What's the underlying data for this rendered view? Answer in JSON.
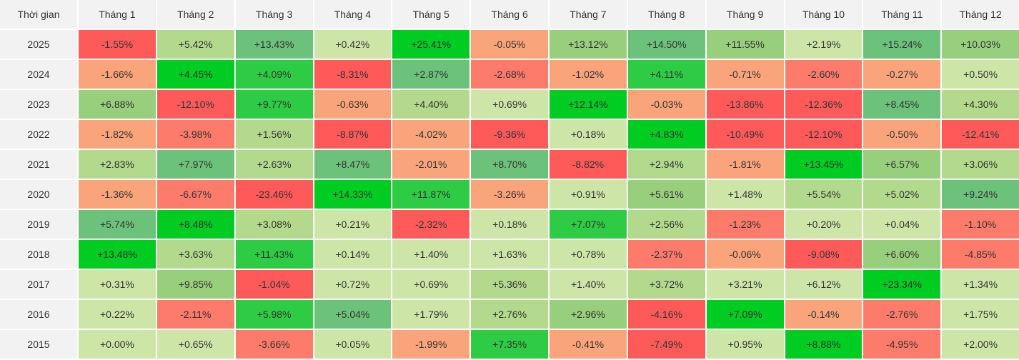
{
  "table": {
    "header": [
      "Thời gian",
      "Tháng 1",
      "Tháng 2",
      "Tháng 3",
      "Tháng 4",
      "Tháng 5",
      "Tháng 6",
      "Tháng 7",
      "Tháng 8",
      "Tháng 9",
      "Tháng 10",
      "Tháng 11",
      "Tháng 12"
    ],
    "rows": [
      [
        "2025",
        "-1.55%",
        "+5.42%",
        "+13.43%",
        "+0.42%",
        "+25.41%",
        "-0.05%",
        "+13.12%",
        "+14.50%",
        "+11.55%",
        "+2.19%",
        "+15.24%",
        "+10.03%"
      ],
      [
        "2024",
        "-1.66%",
        "+4.45%",
        "+4.09%",
        "-8.31%",
        "+2.87%",
        "-2.68%",
        "-1.02%",
        "+4.11%",
        "-0.71%",
        "-2.60%",
        "-0.27%",
        "+0.50%"
      ],
      [
        "2023",
        "+6.88%",
        "-12.10%",
        "+9.77%",
        "-0.63%",
        "+4.40%",
        "+0.69%",
        "+12.14%",
        "-0.03%",
        "-13.86%",
        "-12.36%",
        "+8.45%",
        "+4.30%"
      ],
      [
        "2022",
        "-1.82%",
        "-3.98%",
        "+1.56%",
        "-8.87%",
        "-4.02%",
        "-9.36%",
        "+0.18%",
        "+4.83%",
        "-10.49%",
        "-12.10%",
        "-0.50%",
        "-12.41%"
      ],
      [
        "2021",
        "+2.83%",
        "+7.97%",
        "+2.63%",
        "+8.47%",
        "-2.01%",
        "+8.70%",
        "-8.82%",
        "+2.94%",
        "-1.81%",
        "+13.45%",
        "+6.57%",
        "+3.06%"
      ],
      [
        "2020",
        "-1.36%",
        "-6.67%",
        "-23.46%",
        "+14.33%",
        "+11.87%",
        "-3.26%",
        "+0.91%",
        "+5.61%",
        "+1.48%",
        "+5.54%",
        "+5.02%",
        "+9.24%"
      ],
      [
        "2019",
        "+5.74%",
        "+8.48%",
        "+3.08%",
        "+0.21%",
        "-2.32%",
        "+0.18%",
        "+7.07%",
        "+2.56%",
        "-1.23%",
        "+0.20%",
        "+0.04%",
        "-1.10%"
      ],
      [
        "2018",
        "+13.48%",
        "+3.63%",
        "+11.43%",
        "+0.14%",
        "+1.40%",
        "+1.63%",
        "+0.78%",
        "-2.37%",
        "-0.06%",
        "-9.08%",
        "+6.60%",
        "-4.85%"
      ],
      [
        "2017",
        "+0.31%",
        "+9.85%",
        "-1.04%",
        "+0.72%",
        "+0.69%",
        "+5.36%",
        "+1.40%",
        "+3.72%",
        "+3.21%",
        "+6.12%",
        "+23.34%",
        "+1.34%"
      ],
      [
        "2016",
        "+0.22%",
        "-2.11%",
        "+5.98%",
        "+5.04%",
        "+1.79%",
        "+2.76%",
        "+2.96%",
        "-4.16%",
        "+7.09%",
        "-0.14%",
        "-2.76%",
        "+1.75%"
      ],
      [
        "2015",
        "+0.00%",
        "+0.65%",
        "-3.66%",
        "+0.05%",
        "-1.99%",
        "+7.35%",
        "-0.41%",
        "-7.49%",
        "+0.95%",
        "+8.88%",
        "-4.95%",
        "+2.00%"
      ]
    ],
    "colors": [
      [
        "#ff5a5a",
        "#b3d98c",
        "#6cc27a",
        "#cde6a8",
        "#00cc22",
        "#f9a47a",
        "#98cf7c",
        "#6cc27a",
        "#98cf7c",
        "#cde6a8",
        "#6cc27a",
        "#98cf7c"
      ],
      [
        "#f9a47a",
        "#00cc22",
        "#2ecc44",
        "#ff5a5a",
        "#6cc27a",
        "#fc7b6a",
        "#f9a47a",
        "#2ecc44",
        "#f9a47a",
        "#fc7b6a",
        "#f9a47a",
        "#cde6a8"
      ],
      [
        "#98cf7c",
        "#ff5a5a",
        "#2ecc44",
        "#f9a47a",
        "#b3d98c",
        "#cde6a8",
        "#00cc22",
        "#f9a47a",
        "#ff5a5a",
        "#ff5a5a",
        "#6cc27a",
        "#b3d98c"
      ],
      [
        "#f9a47a",
        "#fc7b6a",
        "#b3d98c",
        "#ff5a5a",
        "#f9a47a",
        "#ff5a5a",
        "#cde6a8",
        "#00cc22",
        "#ff5a5a",
        "#ff5a5a",
        "#f9a47a",
        "#ff5a5a"
      ],
      [
        "#b3d98c",
        "#6cc27a",
        "#b3d98c",
        "#6cc27a",
        "#f9a47a",
        "#6cc27a",
        "#ff5a5a",
        "#b3d98c",
        "#f9a47a",
        "#00cc22",
        "#98cf7c",
        "#b3d98c"
      ],
      [
        "#f9a47a",
        "#fc7b6a",
        "#ff5a5a",
        "#00cc22",
        "#2ecc44",
        "#f9a47a",
        "#cde6a8",
        "#98cf7c",
        "#cde6a8",
        "#b3d98c",
        "#b3d98c",
        "#6cc27a"
      ],
      [
        "#6cc27a",
        "#00cc22",
        "#b3d98c",
        "#cde6a8",
        "#ff5a5a",
        "#cde6a8",
        "#2ecc44",
        "#b3d98c",
        "#fc7b6a",
        "#cde6a8",
        "#cde6a8",
        "#fc7b6a"
      ],
      [
        "#00cc22",
        "#b3d98c",
        "#2ecc44",
        "#cde6a8",
        "#cde6a8",
        "#cde6a8",
        "#cde6a8",
        "#fc7b6a",
        "#f9a47a",
        "#ff5a5a",
        "#98cf7c",
        "#fc7b6a"
      ],
      [
        "#cde6a8",
        "#98cf7c",
        "#ff5a5a",
        "#cde6a8",
        "#cde6a8",
        "#b3d98c",
        "#cde6a8",
        "#b3d98c",
        "#cde6a8",
        "#cde6a8",
        "#00cc22",
        "#cde6a8"
      ],
      [
        "#cde6a8",
        "#fc7b6a",
        "#2ecc44",
        "#6cc27a",
        "#cde6a8",
        "#b3d98c",
        "#98cf7c",
        "#ff5a5a",
        "#00cc22",
        "#f9a47a",
        "#fc7b6a",
        "#cde6a8"
      ],
      [
        "#cde6a8",
        "#cde6a8",
        "#fc7b6a",
        "#cde6a8",
        "#f9a47a",
        "#2ecc44",
        "#f9a47a",
        "#ff5a5a",
        "#cde6a8",
        "#00cc22",
        "#fc7b6a",
        "#cde6a8"
      ]
    ]
  }
}
